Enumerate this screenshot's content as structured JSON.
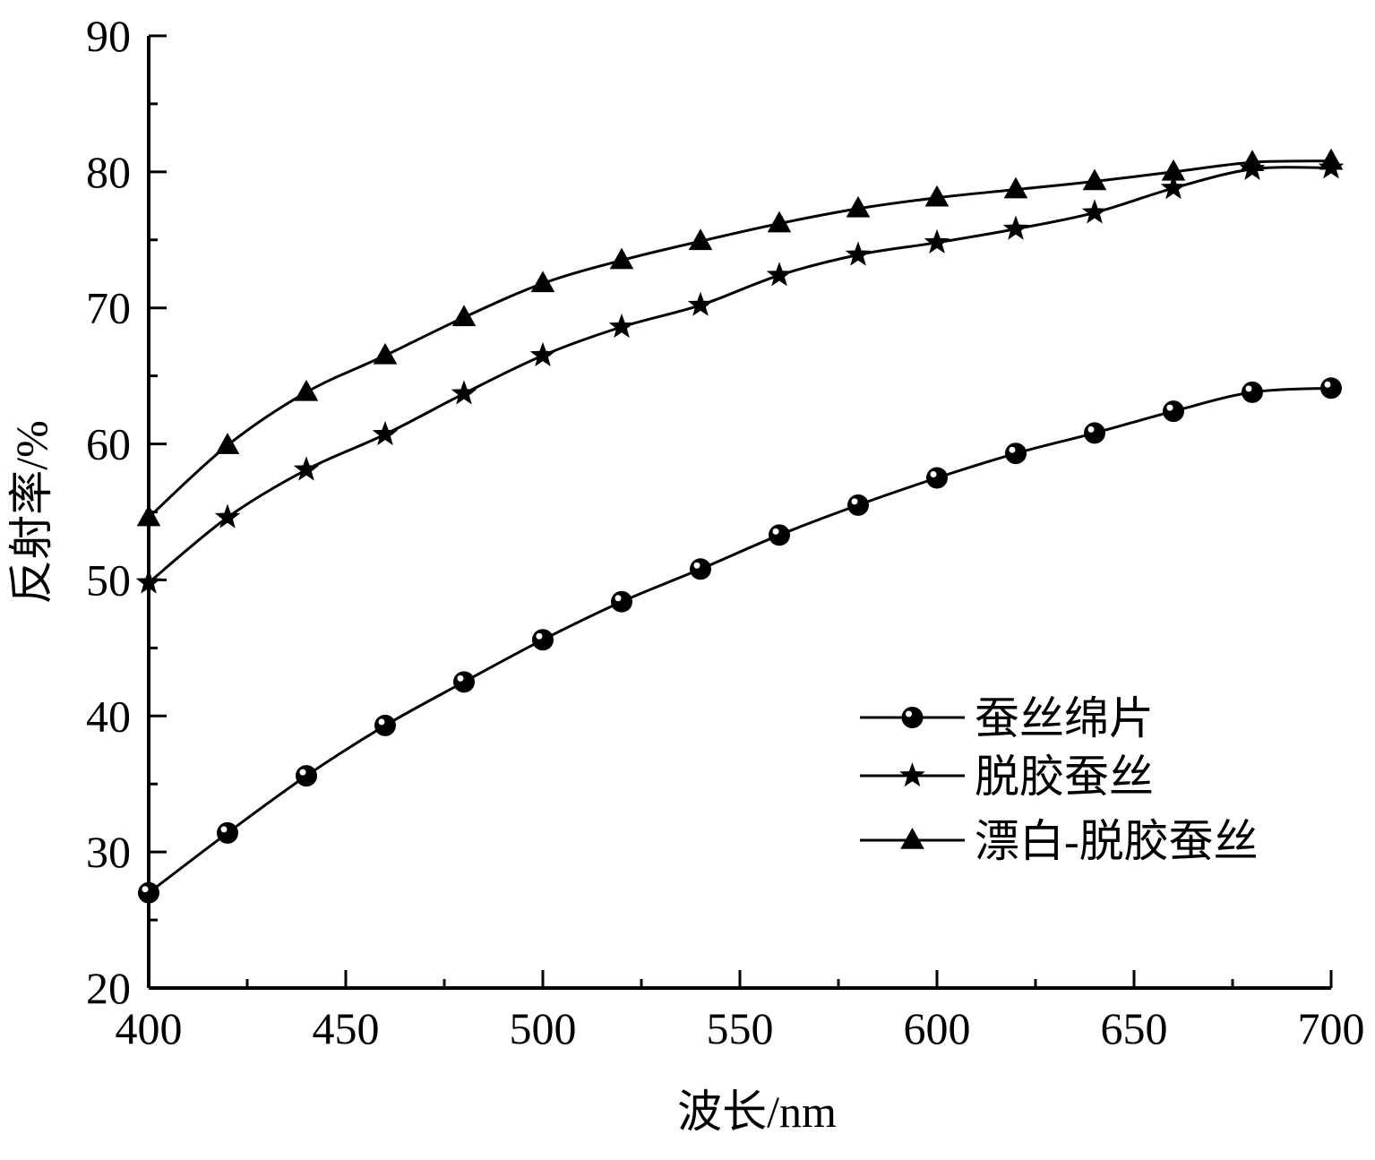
{
  "chart_data": {
    "type": "line",
    "title": "",
    "xlabel": "波长/nm",
    "ylabel": "反射率/%",
    "xlim": [
      400,
      700
    ],
    "ylim": [
      20,
      90
    ],
    "xticks": [
      400,
      450,
      500,
      550,
      600,
      650,
      700
    ],
    "yticks": [
      20,
      30,
      40,
      50,
      60,
      70,
      80,
      90
    ],
    "grid": false,
    "legend_position": "bottom-right",
    "x": [
      400,
      420,
      440,
      460,
      480,
      500,
      520,
      540,
      560,
      580,
      600,
      620,
      640,
      660,
      680,
      700
    ],
    "series": [
      {
        "name": "蚕丝绵片",
        "marker": "circle",
        "values": [
          27.0,
          31.4,
          35.6,
          39.3,
          42.5,
          45.6,
          48.4,
          50.8,
          53.3,
          55.5,
          57.5,
          59.3,
          60.8,
          62.4,
          63.8,
          64.1
        ]
      },
      {
        "name": "脱胶蚕丝",
        "marker": "star",
        "values": [
          49.8,
          54.6,
          58.1,
          60.7,
          63.7,
          66.5,
          68.6,
          70.2,
          72.4,
          73.9,
          74.8,
          75.8,
          77.0,
          78.8,
          80.2,
          80.3
        ]
      },
      {
        "name": "漂白-脱胶蚕丝",
        "marker": "triangle",
        "values": [
          54.6,
          59.9,
          63.8,
          66.5,
          69.3,
          71.8,
          73.5,
          74.9,
          76.2,
          77.3,
          78.1,
          78.7,
          79.3,
          80.0,
          80.7,
          80.8
        ]
      }
    ],
    "colors": {
      "line": "#000000",
      "background": "#ffffff"
    }
  }
}
